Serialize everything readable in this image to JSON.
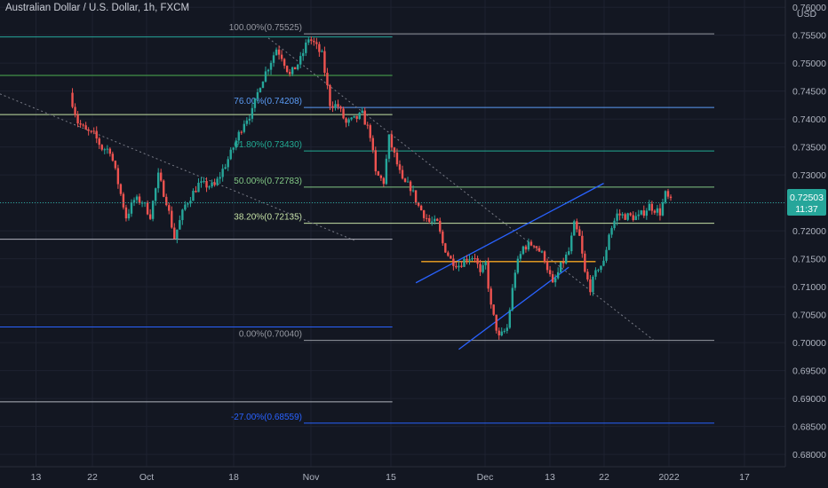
{
  "header": {
    "title": "Australian Dollar / U.S. Dollar, 1h, FXCM"
  },
  "price_scale": {
    "currency": "USD",
    "last_price": "0.72503",
    "countdown": "11:37"
  },
  "colors": {
    "background": "#131722",
    "grid": "#1f2433",
    "candle_up": "#26a69a",
    "candle_down": "#ef5350",
    "channel": "#2962ff",
    "horizontal_line": "#f5a623",
    "last_price": "#26a69a"
  },
  "chart_data": {
    "type": "candlestick",
    "symbol": "AUDUSD",
    "timeframe": "1h",
    "y_axis": {
      "ticks": [
        "0.76000",
        "0.75500",
        "0.75000",
        "0.74500",
        "0.74000",
        "0.73500",
        "0.73000",
        "0.72500",
        "0.72000",
        "0.71500",
        "0.71000",
        "0.70500",
        "0.70000",
        "0.69500",
        "0.69000",
        "0.68500",
        "0.68000"
      ],
      "ylim": [
        0.6778,
        0.7613
      ]
    },
    "x_axis": {
      "ticks": [
        "13",
        "22",
        "Oct",
        "18",
        "Nov",
        "15",
        "Dec",
        "13",
        "22",
        "2022",
        "17"
      ]
    },
    "fib_levels": [
      {
        "label": "100.00%(0.75525)",
        "value": 0.75525,
        "color": "#9598a1"
      },
      {
        "label": "76.00%(0.74208)",
        "value": 0.74208,
        "color": "#5b9cf6"
      },
      {
        "label": "61.80%(0.73430)",
        "value": 0.7343,
        "color": "#22ab94"
      },
      {
        "label": "50.00%(0.72783)",
        "value": 0.72783,
        "color": "#81c784"
      },
      {
        "label": "38.20%(0.72135)",
        "value": 0.72135,
        "color": "#c5e1a5"
      },
      {
        "label": "0.00%(0.70040)",
        "value": 0.7004,
        "color": "#9598a1"
      },
      {
        "label": "-27.00%(0.68559)",
        "value": 0.68559,
        "color": "#2962ff"
      }
    ],
    "price_path": [
      [
        13.0,
        0.7447
      ],
      [
        14.5,
        0.7395
      ],
      [
        16.0,
        0.7378
      ],
      [
        17.5,
        0.7372
      ],
      [
        19.0,
        0.7348
      ],
      [
        20.5,
        0.7345
      ],
      [
        22.0,
        0.7286
      ],
      [
        23.5,
        0.7225
      ],
      [
        25.0,
        0.7255
      ],
      [
        26.5,
        0.7253
      ],
      [
        28.0,
        0.7228
      ],
      [
        29.5,
        0.7298
      ],
      [
        31.0,
        0.7254
      ],
      [
        32.5,
        0.7188
      ],
      [
        34.5,
        0.7246
      ],
      [
        37.0,
        0.7283
      ],
      [
        40.0,
        0.728
      ],
      [
        43.0,
        0.7338
      ],
      [
        45.5,
        0.7396
      ],
      [
        47.0,
        0.7413
      ],
      [
        48.5,
        0.7463
      ],
      [
        50.0,
        0.7494
      ],
      [
        51.5,
        0.7526
      ],
      [
        52.5,
        0.7513
      ],
      [
        54.0,
        0.7478
      ],
      [
        56.0,
        0.7506
      ],
      [
        57.5,
        0.7545
      ],
      [
        58.5,
        0.7535
      ],
      [
        60.0,
        0.7514
      ],
      [
        61.5,
        0.7428
      ],
      [
        63.0,
        0.7423
      ],
      [
        64.5,
        0.7392
      ],
      [
        66.0,
        0.7399
      ],
      [
        67.5,
        0.7408
      ],
      [
        69.0,
        0.7372
      ],
      [
        70.0,
        0.7302
      ],
      [
        71.5,
        0.7288
      ],
      [
        72.5,
        0.7366
      ],
      [
        73.5,
        0.7335
      ],
      [
        75.0,
        0.7287
      ],
      [
        76.5,
        0.7278
      ],
      [
        78.0,
        0.7244
      ],
      [
        80.0,
        0.7216
      ],
      [
        81.5,
        0.7213
      ],
      [
        82.5,
        0.7177
      ],
      [
        84.0,
        0.7148
      ],
      [
        85.5,
        0.7139
      ],
      [
        87.0,
        0.7152
      ],
      [
        88.5,
        0.7155
      ],
      [
        89.5,
        0.7121
      ],
      [
        90.5,
        0.7141
      ],
      [
        91.5,
        0.7063
      ],
      [
        93.0,
        0.7008
      ],
      [
        94.5,
        0.7026
      ],
      [
        96.0,
        0.7129
      ],
      [
        97.5,
        0.7171
      ],
      [
        99.5,
        0.7178
      ],
      [
        101.5,
        0.7151
      ],
      [
        103.0,
        0.7102
      ],
      [
        104.5,
        0.7136
      ],
      [
        106.0,
        0.7163
      ],
      [
        107.0,
        0.721
      ],
      [
        108.0,
        0.7188
      ],
      [
        109.0,
        0.7124
      ],
      [
        110.0,
        0.7098
      ],
      [
        111.5,
        0.7135
      ],
      [
        112.5,
        0.7142
      ],
      [
        113.5,
        0.7196
      ],
      [
        115.0,
        0.7229
      ],
      [
        117.0,
        0.7226
      ],
      [
        119.0,
        0.7224
      ],
      [
        121.0,
        0.7245
      ],
      [
        123.0,
        0.7233
      ],
      [
        124.0,
        0.7265
      ],
      [
        125.0,
        0.7251
      ]
    ],
    "trendlines": [
      {
        "kind": "dotted",
        "color": "#787b86",
        "from": [
          0.0,
          0.7445
        ],
        "to": [
          66.0,
          0.7183
        ]
      },
      {
        "kind": "dotted",
        "color": "#787b86",
        "from": [
          50.0,
          0.7545
        ],
        "to": [
          122.0,
          0.7003
        ]
      },
      {
        "kind": "channel",
        "color": "#2962ff",
        "from": [
          77.5,
          0.7107
        ],
        "to": [
          112.5,
          0.7285
        ]
      },
      {
        "kind": "channel",
        "color": "#2962ff",
        "from": [
          85.5,
          0.6988
        ],
        "to": [
          106.0,
          0.7135
        ]
      },
      {
        "kind": "horizontal",
        "color": "#f5a623",
        "from": [
          78.5,
          0.7145
        ],
        "to": [
          111.0,
          0.7145
        ]
      }
    ],
    "horizontal_rays": [
      {
        "value": 0.7547,
        "color": "#26a69a",
        "x0": 0.0,
        "x1": 66.5
      },
      {
        "value": 0.7478,
        "color": "#4caf50",
        "x0": 0.0,
        "x1": 66.5
      },
      {
        "value": 0.7408,
        "color": "#c5e1a5",
        "x0": 0.0,
        "x1": 66.5
      },
      {
        "value": 0.7185,
        "color": "#b2b5be",
        "x0": 0.0,
        "x1": 66.5
      },
      {
        "value": 0.7028,
        "color": "#2962ff",
        "x0": 0.0,
        "x1": 66.5
      },
      {
        "value": 0.6894,
        "color": "#b2b5be",
        "x0": 0.0,
        "x1": 66.5
      }
    ],
    "last_price": 0.72503
  }
}
